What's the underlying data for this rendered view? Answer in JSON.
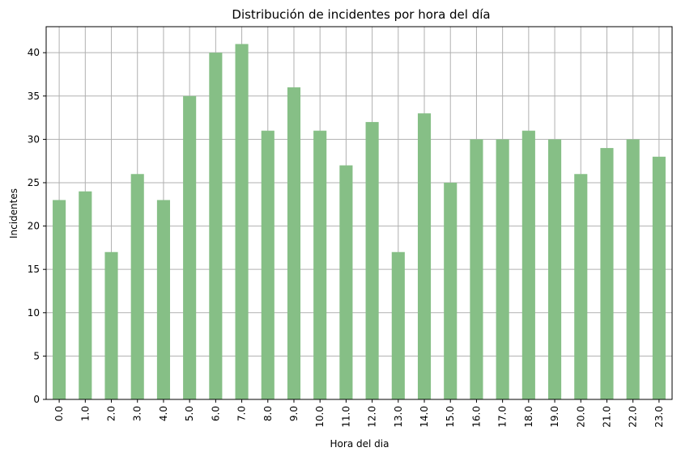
{
  "chart_data": {
    "type": "bar",
    "title": "Distribución de incidentes por hora del día",
    "xlabel": "Hora del dia",
    "ylabel": "Incidentes",
    "categories": [
      "0.0",
      "1.0",
      "2.0",
      "3.0",
      "4.0",
      "5.0",
      "6.0",
      "7.0",
      "8.0",
      "9.0",
      "10.0",
      "11.0",
      "12.0",
      "13.0",
      "14.0",
      "15.0",
      "16.0",
      "17.0",
      "18.0",
      "19.0",
      "20.0",
      "21.0",
      "22.0",
      "23.0"
    ],
    "values": [
      23,
      24,
      17,
      26,
      23,
      35,
      40,
      41,
      31,
      36,
      31,
      27,
      32,
      17,
      33,
      25,
      30,
      30,
      31,
      30,
      26,
      29,
      30,
      28
    ],
    "yticks": [
      0,
      5,
      10,
      15,
      20,
      25,
      30,
      35,
      40
    ],
    "ylim": [
      0,
      43
    ],
    "grid": true,
    "bar_color": "#86bf86",
    "x_tick_rotation": "vertical"
  }
}
